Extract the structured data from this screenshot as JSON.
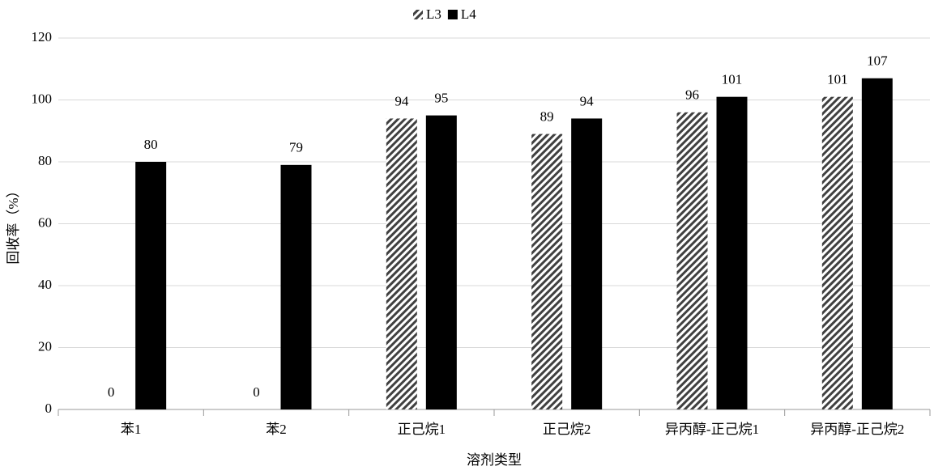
{
  "chart_data": {
    "type": "bar",
    "x_label": "溶剂类型",
    "y_label": "回收率（%）",
    "categories": [
      "苯1",
      "苯2",
      "正己烷1",
      "正己烷2",
      "异丙醇-正己烷1",
      "异丙醇-正己烷2"
    ],
    "series": [
      {
        "name": "L3",
        "color": "#404040",
        "pattern": "hatch",
        "values": [
          0,
          0,
          94,
          89,
          96,
          101
        ]
      },
      {
        "name": "L4",
        "color": "#000000",
        "pattern": "solid",
        "values": [
          80,
          79,
          95,
          94,
          101,
          107
        ]
      }
    ],
    "ylim": [
      0,
      120
    ],
    "yticks": [
      0,
      20,
      40,
      60,
      80,
      100,
      120
    ],
    "grid": true,
    "legend": "top"
  }
}
